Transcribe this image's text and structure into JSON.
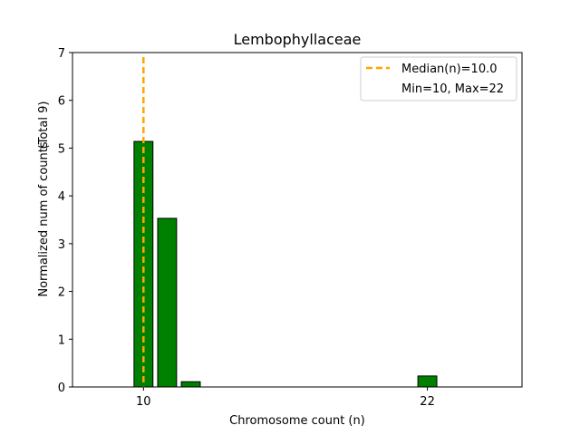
{
  "chart_data": {
    "type": "bar",
    "title": "Lembophyllaceae",
    "xlabel": "Chromosome count (n)",
    "ylabel": "Normalized num of counts",
    "ylabel_note": "(Total 9)",
    "xlim": [
      7.0,
      26.0
    ],
    "ylim": [
      0,
      7
    ],
    "yticks": [
      0,
      1,
      2,
      3,
      4,
      5,
      6,
      7
    ],
    "xticks": [
      10,
      22
    ],
    "bar_width": 0.8,
    "bars": [
      {
        "x": 10,
        "value": 5.14
      },
      {
        "x": 11,
        "value": 3.53
      },
      {
        "x": 12,
        "value": 0.11
      },
      {
        "x": 22,
        "value": 0.23
      }
    ],
    "median": 10.0,
    "legend": {
      "position": "top-right",
      "entries": [
        "Median(n)=10.0",
        "Min=10, Max=22"
      ]
    },
    "colors": {
      "bar": "#008000",
      "bar_edge": "#000000",
      "median_line": "#FFA500"
    }
  }
}
